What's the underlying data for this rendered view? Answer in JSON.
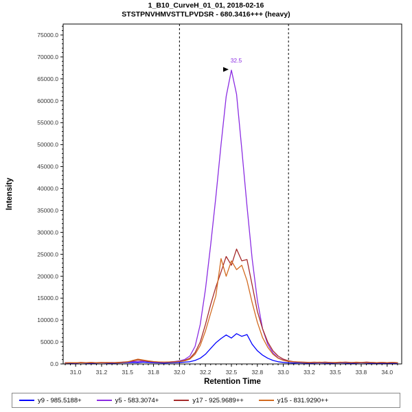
{
  "chart_data": {
    "type": "line",
    "title": "1_B10_CurveH_01_01, 2018-02-16",
    "subtitle": "STSTPNVHMVSTTLPVDSR - 680.3416+++ (heavy)",
    "xlabel": "Retention Time",
    "ylabel": "Intensity",
    "xlim": [
      30.88,
      34.14
    ],
    "ylim": [
      0,
      77500
    ],
    "grid": false,
    "legend_position": "bottom",
    "x_minor_step": 0.05,
    "y_minor_step": 1000,
    "x_ticks": [
      {
        "v": 31.0,
        "label": "31.0"
      },
      {
        "v": 31.25,
        "label": "31.2"
      },
      {
        "v": 31.5,
        "label": "31.5"
      },
      {
        "v": 31.75,
        "label": "31.8"
      },
      {
        "v": 32.0,
        "label": "32.0"
      },
      {
        "v": 32.25,
        "label": "32.2"
      },
      {
        "v": 32.5,
        "label": "32.5"
      },
      {
        "v": 32.75,
        "label": "32.8"
      },
      {
        "v": 33.0,
        "label": "33.0"
      },
      {
        "v": 33.25,
        "label": "33.2"
      },
      {
        "v": 33.5,
        "label": "33.5"
      },
      {
        "v": 33.75,
        "label": "33.8"
      },
      {
        "v": 34.0,
        "label": "34.0"
      }
    ],
    "y_ticks": [
      {
        "v": 0,
        "label": "0.0"
      },
      {
        "v": 5000,
        "label": "5000.0"
      },
      {
        "v": 10000,
        "label": "10000.0"
      },
      {
        "v": 15000,
        "label": "15000.0"
      },
      {
        "v": 20000,
        "label": "20000.0"
      },
      {
        "v": 25000,
        "label": "25000.0"
      },
      {
        "v": 30000,
        "label": "30000.0"
      },
      {
        "v": 35000,
        "label": "35000.0"
      },
      {
        "v": 40000,
        "label": "40000.0"
      },
      {
        "v": 45000,
        "label": "45000.0"
      },
      {
        "v": 50000,
        "label": "50000.0"
      },
      {
        "v": 55000,
        "label": "55000.0"
      },
      {
        "v": 60000,
        "label": "60000.0"
      },
      {
        "v": 65000,
        "label": "65000.0"
      },
      {
        "v": 70000,
        "label": "70000.0"
      },
      {
        "v": 75000,
        "label": "75000.0"
      }
    ],
    "peak_boundaries": [
      32.0,
      33.05
    ],
    "peak_annotation": {
      "x": 32.5,
      "y": 67000,
      "label": "32.5",
      "label_color": "#8A2BE2",
      "arrow_color": "#000000"
    },
    "x": [
      30.9,
      30.95,
      31.0,
      31.05,
      31.1,
      31.15,
      31.2,
      31.25,
      31.3,
      31.35,
      31.4,
      31.45,
      31.5,
      31.55,
      31.6,
      31.65,
      31.7,
      31.75,
      31.8,
      31.85,
      31.9,
      31.95,
      32.0,
      32.05,
      32.1,
      32.15,
      32.2,
      32.25,
      32.3,
      32.35,
      32.4,
      32.45,
      32.5,
      32.55,
      32.6,
      32.65,
      32.7,
      32.75,
      32.8,
      32.85,
      32.9,
      32.95,
      33.0,
      33.05,
      33.1,
      33.15,
      33.2,
      33.25,
      33.3,
      33.35,
      33.4,
      33.45,
      33.5,
      33.55,
      33.6,
      33.65,
      33.7,
      33.75,
      33.8,
      33.85,
      33.9,
      33.95,
      34.0,
      34.05,
      34.1
    ],
    "series": [
      {
        "id": "y9",
        "name": "y9 - 985.5188+",
        "color": "#0000FF",
        "values": [
          150,
          200,
          150,
          250,
          200,
          150,
          200,
          250,
          200,
          150,
          200,
          250,
          300,
          350,
          300,
          400,
          350,
          300,
          250,
          200,
          250,
          300,
          350,
          400,
          500,
          800,
          1300,
          2200,
          3500,
          4800,
          5800,
          6600,
          5900,
          6900,
          6300,
          6700,
          4500,
          3000,
          2000,
          1300,
          800,
          500,
          350,
          250,
          200,
          250,
          200,
          150,
          200,
          250,
          200,
          150,
          200,
          250,
          200,
          150,
          200,
          250,
          200,
          150,
          200,
          150,
          200,
          150,
          200
        ]
      },
      {
        "id": "y5",
        "name": "y5 - 583.3074+",
        "color": "#8A2BE2",
        "values": [
          300,
          250,
          200,
          300,
          250,
          350,
          300,
          250,
          300,
          350,
          300,
          400,
          450,
          550,
          500,
          650,
          550,
          450,
          400,
          350,
          450,
          550,
          700,
          1000,
          1800,
          4000,
          9000,
          17000,
          27000,
          38000,
          50000,
          61000,
          67000,
          61500,
          49000,
          36000,
          24000,
          14500,
          8000,
          4500,
          2500,
          1400,
          900,
          600,
          500,
          400,
          350,
          300,
          350,
          300,
          400,
          350,
          300,
          350,
          400,
          300,
          350,
          300,
          400,
          350,
          300,
          350,
          300,
          350,
          300
        ]
      },
      {
        "id": "y17",
        "name": "y17 - 925.9689++",
        "color": "#A52A2A",
        "values": [
          250,
          300,
          250,
          350,
          300,
          250,
          300,
          350,
          300,
          250,
          350,
          400,
          500,
          700,
          900,
          800,
          600,
          500,
          450,
          400,
          450,
          500,
          600,
          800,
          1300,
          2600,
          5000,
          9000,
          13500,
          17500,
          21000,
          24500,
          22500,
          26200,
          23500,
          23800,
          18000,
          12000,
          8000,
          5000,
          3000,
          1800,
          1100,
          700,
          500,
          450,
          400,
          350,
          400,
          350,
          400,
          350,
          300,
          350,
          400,
          350,
          300,
          350,
          400,
          350,
          300,
          350,
          300,
          350,
          300
        ]
      },
      {
        "id": "y15",
        "name": "y15 - 831.9290++",
        "color": "#D2691E",
        "values": [
          200,
          250,
          300,
          250,
          300,
          350,
          250,
          300,
          350,
          300,
          250,
          350,
          450,
          800,
          1100,
          900,
          700,
          550,
          450,
          400,
          400,
          450,
          550,
          700,
          1100,
          2200,
          4200,
          7500,
          11500,
          15500,
          24000,
          20000,
          23500,
          21500,
          22500,
          19000,
          14000,
          9500,
          6000,
          3800,
          2200,
          1300,
          800,
          550,
          450,
          400,
          350,
          300,
          350,
          400,
          350,
          300,
          350,
          400,
          350,
          300,
          400,
          350,
          300,
          350,
          300,
          350,
          300,
          350,
          300
        ]
      }
    ]
  }
}
